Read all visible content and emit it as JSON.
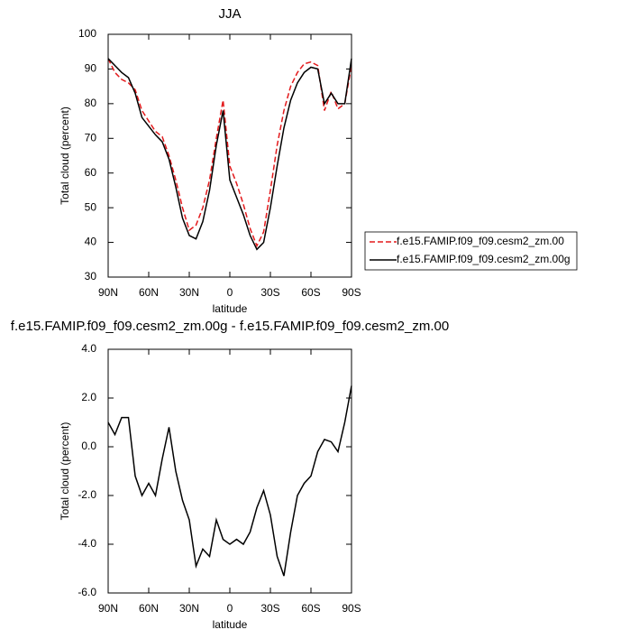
{
  "chart_data": [
    {
      "type": "line",
      "title": "JJA",
      "x_label": "latitude",
      "y_label": "Total cloud (percent)",
      "x": [
        90,
        85,
        80,
        75,
        70,
        65,
        60,
        55,
        50,
        45,
        40,
        35,
        30,
        25,
        20,
        15,
        10,
        5,
        0,
        -5,
        -10,
        -15,
        -20,
        -25,
        -30,
        -35,
        -40,
        -45,
        -50,
        -55,
        -60,
        -65,
        -70,
        -75,
        -80,
        -85,
        -90
      ],
      "xlim": [
        90,
        -90
      ],
      "xticks": [
        {
          "value": 90,
          "label": "90N"
        },
        {
          "value": 60,
          "label": "60N"
        },
        {
          "value": 30,
          "label": "30N"
        },
        0,
        {
          "value": -30,
          "label": "30S"
        },
        {
          "value": -60,
          "label": "60S"
        },
        {
          "value": -90,
          "label": "90S"
        }
      ],
      "ylim": [
        30,
        100
      ],
      "yticks": [
        30,
        40,
        50,
        60,
        70,
        80,
        90,
        100
      ],
      "legend": "right",
      "series": [
        {
          "name": "f.e15.FAMIP.f09_f09.cesm2_zm.00",
          "color": "#e31a1c",
          "dash": true,
          "values": [
            93,
            89,
            87,
            86,
            84,
            78,
            75,
            72,
            70.5,
            65,
            58,
            50,
            43.5,
            45,
            50,
            58,
            70,
            81,
            62,
            57,
            51,
            44,
            39,
            43,
            55,
            68,
            78,
            85,
            89,
            91.5,
            92,
            91,
            78,
            83.5,
            78.5,
            80,
            91
          ]
        },
        {
          "name": "f.e15.FAMIP.f09_f09.cesm2_zm.00g",
          "color": "#000000",
          "dash": false,
          "values": [
            93,
            91,
            89,
            87.5,
            83,
            76,
            73.5,
            71,
            69,
            64,
            56,
            47,
            42,
            41,
            46,
            55,
            68,
            78,
            58,
            53,
            48,
            42,
            38,
            40,
            50,
            62,
            73,
            81,
            86,
            89,
            90.5,
            90,
            80,
            83,
            80,
            80,
            93
          ]
        }
      ]
    },
    {
      "type": "line",
      "title": "f.e15.FAMIP.f09_f09.cesm2_zm.00g - f.e15.FAMIP.f09_f09.cesm2_zm.00",
      "x_label": "latitude",
      "y_label": "Total cloud (percent)",
      "x": [
        90,
        85,
        80,
        75,
        70,
        65,
        60,
        55,
        50,
        45,
        40,
        35,
        30,
        25,
        20,
        15,
        10,
        5,
        0,
        -5,
        -10,
        -15,
        -20,
        -25,
        -30,
        -35,
        -40,
        -45,
        -50,
        -55,
        -60,
        -65,
        -70,
        -75,
        -80,
        -85,
        -90
      ],
      "xlim": [
        90,
        -90
      ],
      "xticks": [
        {
          "value": 90,
          "label": "90N"
        },
        {
          "value": 60,
          "label": "60N"
        },
        {
          "value": 30,
          "label": "30N"
        },
        0,
        {
          "value": -30,
          "label": "30S"
        },
        {
          "value": -60,
          "label": "60S"
        },
        {
          "value": -90,
          "label": "90S"
        }
      ],
      "ylim": [
        -6,
        4
      ],
      "yticks": [
        {
          "value": -6,
          "label": "-6.0"
        },
        {
          "value": -4,
          "label": "-4.0"
        },
        {
          "value": -2,
          "label": "-2.0"
        },
        {
          "value": 0,
          "label": "0.0"
        },
        {
          "value": 2,
          "label": "2.0"
        },
        {
          "value": 4,
          "label": "4.0"
        }
      ],
      "color": "#000000",
      "values": [
        1.0,
        0.5,
        1.2,
        1.2,
        -1.2,
        -2.0,
        -1.5,
        -2.0,
        -0.5,
        0.8,
        -1.0,
        -2.2,
        -3.0,
        -4.9,
        -4.2,
        -4.5,
        -3.0,
        -3.8,
        -4.0,
        -3.8,
        -4.0,
        -3.5,
        -2.5,
        -1.8,
        -2.8,
        -4.5,
        -5.3,
        -3.5,
        -2.0,
        -1.5,
        -1.2,
        -0.2,
        0.3,
        0.2,
        -0.2,
        1.0,
        2.5
      ]
    }
  ]
}
